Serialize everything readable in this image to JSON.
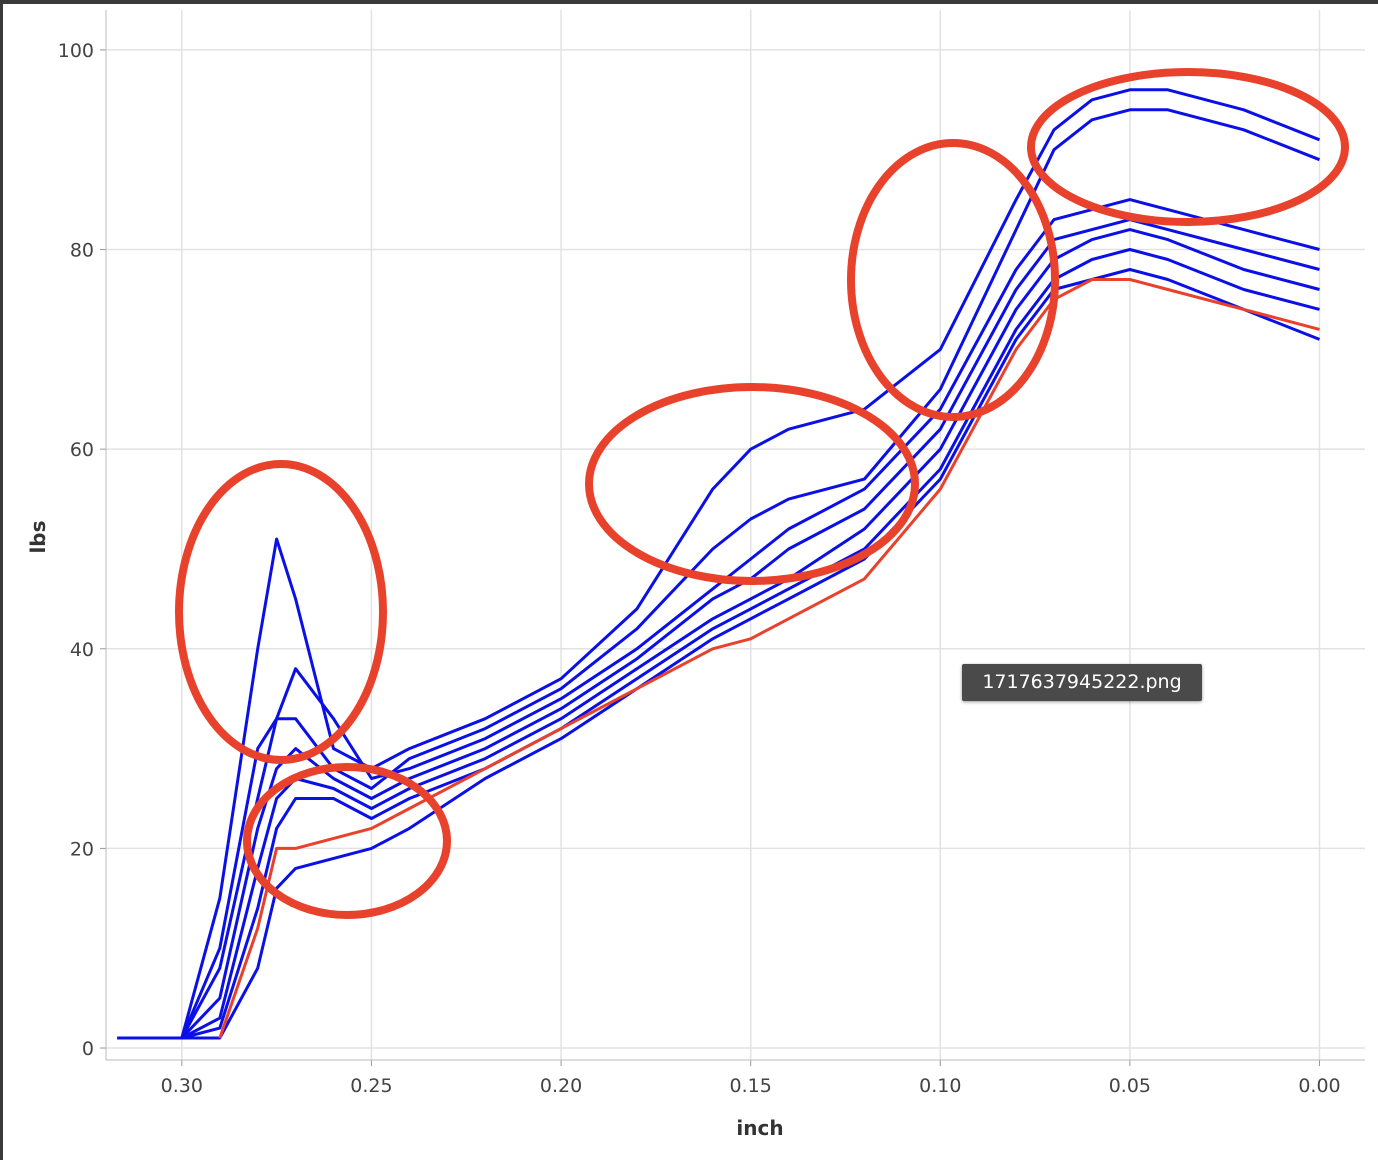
{
  "chart_data": {
    "type": "line",
    "x_label": "inch",
    "y_label": "lbs",
    "x": [
      0.317,
      0.3,
      0.29,
      0.28,
      0.275,
      0.27,
      0.26,
      0.25,
      0.24,
      0.22,
      0.2,
      0.18,
      0.16,
      0.15,
      0.14,
      0.12,
      0.1,
      0.08,
      0.07,
      0.06,
      0.05,
      0.04,
      0.02,
      0.0
    ],
    "series": [
      {
        "color": "#0a10e6",
        "values": [
          1,
          1,
          15,
          40,
          51,
          45,
          30,
          28,
          30,
          33,
          37,
          44,
          56,
          60,
          62,
          64,
          70,
          85,
          92,
          95,
          96,
          96,
          94,
          91
        ]
      },
      {
        "color": "#0a10e6",
        "values": [
          1,
          1,
          10,
          30,
          33,
          33,
          28,
          26,
          29,
          32,
          36,
          42,
          50,
          53,
          55,
          57,
          66,
          82,
          90,
          93,
          94,
          94,
          92,
          89
        ]
      },
      {
        "color": "#0a10e6",
        "values": [
          1,
          1,
          8,
          25,
          33,
          38,
          33,
          27,
          28,
          31,
          35,
          40,
          46,
          49,
          52,
          56,
          64,
          78,
          83,
          84,
          85,
          84,
          82,
          80
        ]
      },
      {
        "color": "#0a10e6",
        "values": [
          1,
          1,
          5,
          22,
          28,
          30,
          27,
          25,
          27,
          30,
          34,
          39,
          45,
          47,
          50,
          54,
          62,
          76,
          81,
          82,
          83,
          82,
          80,
          78
        ]
      },
      {
        "color": "#0a10e6",
        "values": [
          1,
          1,
          3,
          18,
          25,
          27,
          26,
          24,
          26,
          29,
          33,
          38,
          43,
          45,
          47,
          52,
          60,
          74,
          79,
          81,
          82,
          81,
          78,
          76
        ]
      },
      {
        "color": "#0a10e6",
        "values": [
          1,
          1,
          2,
          14,
          22,
          25,
          25,
          23,
          25,
          28,
          32,
          37,
          42,
          44,
          46,
          50,
          58,
          72,
          77,
          79,
          80,
          79,
          76,
          74
        ]
      },
      {
        "color": "#0a10e6",
        "values": [
          1,
          1,
          1,
          8,
          16,
          18,
          19,
          20,
          22,
          27,
          31,
          36,
          41,
          43,
          45,
          49,
          57,
          71,
          76,
          77,
          78,
          77,
          74,
          71
        ]
      },
      {
        "color": "#e8412c",
        "values": [
          null,
          null,
          1,
          12,
          20,
          20,
          21,
          22,
          24,
          28,
          32,
          36,
          40,
          41,
          43,
          47,
          56,
          70,
          75,
          77,
          77,
          76,
          74,
          72
        ]
      }
    ],
    "xlim": [
      0.32,
      -0.012
    ],
    "ylim": [
      -1.2,
      104
    ],
    "xticks": [
      {
        "value": 0.3,
        "label": "0.30"
      },
      {
        "value": 0.25,
        "label": "0.25"
      },
      {
        "value": 0.2,
        "label": "0.20"
      },
      {
        "value": 0.15,
        "label": "0.15"
      },
      {
        "value": 0.1,
        "label": "0.10"
      },
      {
        "value": 0.05,
        "label": "0.05"
      },
      {
        "value": 0,
        "label": "0.00"
      }
    ],
    "yticks": [
      0,
      20,
      40,
      60,
      80,
      100
    ],
    "grid": true
  },
  "tooltip": "1717637945222.png"
}
